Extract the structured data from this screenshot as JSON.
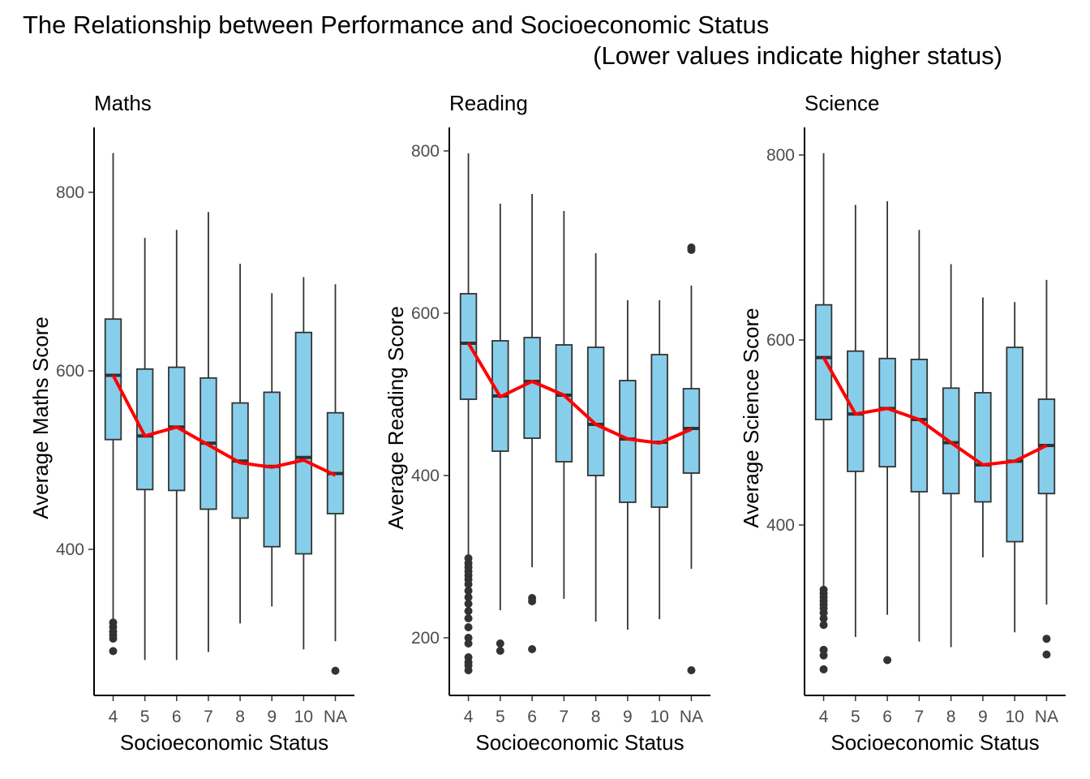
{
  "chart_data": {
    "type": "box",
    "title": "The Relationship between Performance and Socioeconomic Status",
    "subtitle": "(Lower values indicate higher status)",
    "colors": {
      "box_fill": "#87CEEB",
      "box_stroke": "#333333",
      "mean_line": "#FF0000",
      "axis": "#000000"
    },
    "categories": [
      "4",
      "5",
      "6",
      "7",
      "8",
      "9",
      "10",
      "NA"
    ],
    "panels": [
      {
        "name": "Maths",
        "xlabel": "Socioeconomic Status",
        "ylabel": "Average Maths Score",
        "ylim": [
          238,
          870
        ],
        "yticks": [
          400,
          600,
          800
        ],
        "boxes": [
          {
            "cat": "4",
            "upper": 844,
            "q3": 658,
            "median": 595,
            "q1": 523,
            "lower": 318,
            "outliers": [
              318,
              313,
              308,
              304,
              300,
              286
            ]
          },
          {
            "cat": "5",
            "upper": 749,
            "q3": 602,
            "median": 527,
            "q1": 467,
            "lower": 276,
            "outliers": []
          },
          {
            "cat": "6",
            "upper": 758,
            "q3": 604,
            "median": 537,
            "q1": 466,
            "lower": 276,
            "outliers": []
          },
          {
            "cat": "7",
            "upper": 778,
            "q3": 592,
            "median": 519,
            "q1": 445,
            "lower": 285,
            "outliers": []
          },
          {
            "cat": "8",
            "upper": 720,
            "q3": 564,
            "median": 499,
            "q1": 435,
            "lower": 317,
            "outliers": []
          },
          {
            "cat": "9",
            "upper": 687,
            "q3": 576,
            "median": 493,
            "q1": 403,
            "lower": 336,
            "outliers": []
          },
          {
            "cat": "10",
            "upper": 705,
            "q3": 643,
            "median": 503,
            "q1": 395,
            "lower": 288,
            "outliers": []
          },
          {
            "cat": "NA",
            "upper": 697,
            "q3": 553,
            "median": 485,
            "q1": 440,
            "lower": 297,
            "outliers": [
              264
            ]
          }
        ],
        "mean_line": [
          595,
          527,
          537,
          517,
          497,
          492,
          500,
          483
        ]
      },
      {
        "name": "Reading",
        "xlabel": "Socioeconomic Status",
        "ylabel": "Average Reading Score",
        "ylim": [
          128,
          828
        ],
        "yticks": [
          200,
          400,
          600,
          800
        ],
        "boxes": [
          {
            "cat": "4",
            "upper": 797,
            "q3": 624,
            "median": 563,
            "q1": 494,
            "lower": 301,
            "outliers": [
              298,
              292,
              287,
              282,
              277,
              272,
              266,
              258,
              250,
              242,
              233,
              224,
              213,
              200,
              193,
              176,
              170,
              166,
              160
            ]
          },
          {
            "cat": "5",
            "upper": 735,
            "q3": 566,
            "median": 498,
            "q1": 430,
            "lower": 234,
            "outliers": [
              193,
              184
            ]
          },
          {
            "cat": "6",
            "upper": 747,
            "q3": 570,
            "median": 516,
            "q1": 446,
            "lower": 287,
            "outliers": [
              249,
              245,
              186
            ]
          },
          {
            "cat": "7",
            "upper": 726,
            "q3": 561,
            "median": 499,
            "q1": 417,
            "lower": 248,
            "outliers": []
          },
          {
            "cat": "8",
            "upper": 674,
            "q3": 558,
            "median": 463,
            "q1": 400,
            "lower": 220,
            "outliers": []
          },
          {
            "cat": "9",
            "upper": 616,
            "q3": 517,
            "median": 445,
            "q1": 367,
            "lower": 210,
            "outliers": []
          },
          {
            "cat": "10",
            "upper": 616,
            "q3": 549,
            "median": 441,
            "q1": 361,
            "lower": 223,
            "outliers": []
          },
          {
            "cat": "NA",
            "upper": 634,
            "q3": 507,
            "median": 458,
            "q1": 403,
            "lower": 285,
            "outliers": [
              681,
              678,
              160
            ]
          }
        ],
        "mean_line": [
          563,
          497,
          516,
          499,
          463,
          445,
          440,
          457
        ]
      },
      {
        "name": "Science",
        "xlabel": "Socioeconomic Status",
        "ylabel": "Average Science Score",
        "ylim": [
          225,
          835
        ],
        "yticks": [
          400,
          600,
          800
        ],
        "boxes": [
          {
            "cat": "4",
            "upper": 802,
            "q3": 638,
            "median": 581,
            "q1": 514,
            "lower": 333,
            "outliers": [
              330,
              326,
              322,
              318,
              314,
              310,
              305,
              299,
              292,
              265,
              259,
              244
            ]
          },
          {
            "cat": "5",
            "upper": 746,
            "q3": 588,
            "median": 520,
            "q1": 458,
            "lower": 279,
            "outliers": []
          },
          {
            "cat": "6",
            "upper": 750,
            "q3": 580,
            "median": 526,
            "q1": 463,
            "lower": 303,
            "outliers": [
              254
            ]
          },
          {
            "cat": "7",
            "upper": 719,
            "q3": 579,
            "median": 514,
            "q1": 436,
            "lower": 274,
            "outliers": []
          },
          {
            "cat": "8",
            "upper": 682,
            "q3": 548,
            "median": 489,
            "q1": 434,
            "lower": 268,
            "outliers": []
          },
          {
            "cat": "9",
            "upper": 646,
            "q3": 543,
            "median": 465,
            "q1": 425,
            "lower": 365,
            "outliers": []
          },
          {
            "cat": "10",
            "upper": 641,
            "q3": 592,
            "median": 469,
            "q1": 382,
            "lower": 284,
            "outliers": []
          },
          {
            "cat": "NA",
            "upper": 665,
            "q3": 536,
            "median": 486,
            "q1": 434,
            "lower": 314,
            "outliers": [
              277,
              260
            ]
          }
        ],
        "mean_line": [
          581,
          520,
          526,
          514,
          489,
          465,
          469,
          486
        ]
      }
    ]
  }
}
